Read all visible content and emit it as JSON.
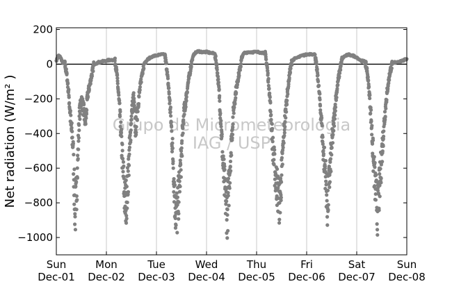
{
  "chart_data": {
    "type": "scatter",
    "title": "",
    "xlabel": "",
    "ylabel": "Net radiation (W/m² )",
    "ylim": [
      -1100,
      210
    ],
    "yticks": [
      200,
      0,
      -200,
      -400,
      -600,
      -800,
      -1000
    ],
    "ytick_labels": [
      "200",
      "0",
      "−200",
      "−400",
      "−600",
      "−800",
      "−1000"
    ],
    "xlim": [
      "2008-12-01",
      "2008-12-08"
    ],
    "xticks": [
      {
        "day": "Sun",
        "date": "Dec-01"
      },
      {
        "day": "Mon",
        "date": "Dec-02"
      },
      {
        "day": "Tue",
        "date": "Dec-03"
      },
      {
        "day": "Wed",
        "date": "Dec-04"
      },
      {
        "day": "Thu",
        "date": "Dec-05"
      },
      {
        "day": "Fri",
        "date": "Dec-06"
      },
      {
        "day": "Sat",
        "date": "Dec-07"
      },
      {
        "day": "Sun",
        "date": "Dec-08"
      }
    ],
    "grid": "vertical",
    "zero_line": true,
    "marker_color": "#808080",
    "watermark": [
      "Grupo de Micrometeorologia",
      "IAG / USP"
    ],
    "series": [
      {
        "points": [
          [
            "2008-12-01 00:00",
            20
          ],
          [
            "2008-12-01 01:00",
            50
          ],
          [
            "2008-12-01 02:00",
            40
          ],
          [
            "2008-12-01 03:00",
            10
          ],
          [
            "2008-12-01 04:00",
            5
          ],
          [
            "2008-12-01 05:00",
            -60
          ],
          [
            "2008-12-01 06:00",
            -180
          ],
          [
            "2008-12-01 07:00",
            -350
          ],
          [
            "2008-12-01 08:00",
            -470
          ],
          [
            "2008-12-01 09:00",
            -880
          ],
          [
            "2008-12-01 10:00",
            -650
          ],
          [
            "2008-12-01 11:00",
            -300
          ],
          [
            "2008-12-01 12:00",
            -200
          ],
          [
            "2008-12-01 13:00",
            -260
          ],
          [
            "2008-12-01 14:00",
            -340
          ],
          [
            "2008-12-01 15:00",
            -180
          ],
          [
            "2008-12-01 16:00",
            -120
          ],
          [
            "2008-12-01 17:00",
            -60
          ],
          [
            "2008-12-01 18:00",
            0
          ],
          [
            "2008-12-01 20:00",
            10
          ],
          [
            "2008-12-01 22:00",
            15
          ],
          [
            "2008-12-02 00:00",
            20
          ],
          [
            "2008-12-02 02:00",
            25
          ],
          [
            "2008-12-02 04:00",
            25
          ],
          [
            "2008-12-02 05:00",
            -50
          ],
          [
            "2008-12-02 06:00",
            -200
          ],
          [
            "2008-12-02 07:00",
            -400
          ],
          [
            "2008-12-02 08:00",
            -620
          ],
          [
            "2008-12-02 09:00",
            -820
          ],
          [
            "2008-12-02 10:00",
            -740
          ],
          [
            "2008-12-02 11:00",
            -520
          ],
          [
            "2008-12-02 12:00",
            -300
          ],
          [
            "2008-12-02 13:00",
            -180
          ],
          [
            "2008-12-02 14:00",
            -380
          ],
          [
            "2008-12-02 15:00",
            -250
          ],
          [
            "2008-12-02 16:00",
            -150
          ],
          [
            "2008-12-02 17:00",
            -60
          ],
          [
            "2008-12-02 18:00",
            0
          ],
          [
            "2008-12-02 20:00",
            30
          ],
          [
            "2008-12-02 22:00",
            45
          ],
          [
            "2008-12-03 00:00",
            50
          ],
          [
            "2008-12-03 02:00",
            55
          ],
          [
            "2008-12-03 04:00",
            55
          ],
          [
            "2008-12-03 05:00",
            -30
          ],
          [
            "2008-12-03 06:00",
            -160
          ],
          [
            "2008-12-03 07:00",
            -330
          ],
          [
            "2008-12-03 08:00",
            -560
          ],
          [
            "2008-12-03 09:00",
            -830
          ],
          [
            "2008-12-03 10:00",
            -860
          ],
          [
            "2008-12-03 11:00",
            -700
          ],
          [
            "2008-12-03 12:00",
            -520
          ],
          [
            "2008-12-03 13:00",
            -300
          ],
          [
            "2008-12-03 14:00",
            -220
          ],
          [
            "2008-12-03 15:00",
            -120
          ],
          [
            "2008-12-03 16:00",
            -50
          ],
          [
            "2008-12-03 17:00",
            20
          ],
          [
            "2008-12-03 18:00",
            60
          ],
          [
            "2008-12-03 20:00",
            75
          ],
          [
            "2008-12-03 22:00",
            70
          ],
          [
            "2008-12-04 00:00",
            70
          ],
          [
            "2008-12-04 02:00",
            65
          ],
          [
            "2008-12-04 04:00",
            60
          ],
          [
            "2008-12-04 05:00",
            -20
          ],
          [
            "2008-12-04 06:00",
            -150
          ],
          [
            "2008-12-04 07:00",
            -360
          ],
          [
            "2008-12-04 08:00",
            -600
          ],
          [
            "2008-12-04 09:00",
            -760
          ],
          [
            "2008-12-04 10:00",
            -870
          ],
          [
            "2008-12-04 11:00",
            -640
          ],
          [
            "2008-12-04 12:00",
            -440
          ],
          [
            "2008-12-04 13:00",
            -260
          ],
          [
            "2008-12-04 14:00",
            -160
          ],
          [
            "2008-12-04 15:00",
            -90
          ],
          [
            "2008-12-04 16:00",
            -30
          ],
          [
            "2008-12-04 17:00",
            40
          ],
          [
            "2008-12-04 18:00",
            65
          ],
          [
            "2008-12-04 20:00",
            70
          ],
          [
            "2008-12-04 22:00",
            70
          ],
          [
            "2008-12-05 00:00",
            70
          ],
          [
            "2008-12-05 02:00",
            68
          ],
          [
            "2008-12-05 04:00",
            65
          ],
          [
            "2008-12-05 05:00",
            -10
          ],
          [
            "2008-12-05 06:00",
            -140
          ],
          [
            "2008-12-05 07:00",
            -320
          ],
          [
            "2008-12-05 08:00",
            -520
          ],
          [
            "2008-12-05 09:00",
            -640
          ],
          [
            "2008-12-05 10:00",
            -720
          ],
          [
            "2008-12-05 11:00",
            -800
          ],
          [
            "2008-12-05 12:00",
            -640
          ],
          [
            "2008-12-05 13:00",
            -420
          ],
          [
            "2008-12-05 14:00",
            -260
          ],
          [
            "2008-12-05 15:00",
            -140
          ],
          [
            "2008-12-05 16:00",
            -40
          ],
          [
            "2008-12-05 17:00",
            20
          ],
          [
            "2008-12-05 18:00",
            30
          ],
          [
            "2008-12-05 20:00",
            40
          ],
          [
            "2008-12-05 22:00",
            50
          ],
          [
            "2008-12-06 00:00",
            55
          ],
          [
            "2008-12-06 02:00",
            60
          ],
          [
            "2008-12-06 04:00",
            55
          ],
          [
            "2008-12-06 05:00",
            -40
          ],
          [
            "2008-12-06 06:00",
            -160
          ],
          [
            "2008-12-06 07:00",
            -320
          ],
          [
            "2008-12-06 08:00",
            -500
          ],
          [
            "2008-12-06 09:00",
            -620
          ],
          [
            "2008-12-06 10:00",
            -830
          ],
          [
            "2008-12-06 11:00",
            -640
          ],
          [
            "2008-12-06 12:00",
            -480
          ],
          [
            "2008-12-06 13:00",
            -340
          ],
          [
            "2008-12-06 14:00",
            -200
          ],
          [
            "2008-12-06 15:00",
            -100
          ],
          [
            "2008-12-06 16:00",
            -30
          ],
          [
            "2008-12-06 17:00",
            30
          ],
          [
            "2008-12-06 18:00",
            45
          ],
          [
            "2008-12-06 20:00",
            55
          ],
          [
            "2008-12-06 22:00",
            50
          ],
          [
            "2008-12-07 00:00",
            40
          ],
          [
            "2008-12-07 02:00",
            20
          ],
          [
            "2008-12-07 04:00",
            15
          ],
          [
            "2008-12-07 05:00",
            -40
          ],
          [
            "2008-12-07 06:00",
            -160
          ],
          [
            "2008-12-07 07:00",
            -330
          ],
          [
            "2008-12-07 08:00",
            -560
          ],
          [
            "2008-12-07 09:00",
            -720
          ],
          [
            "2008-12-07 10:00",
            -850
          ],
          [
            "2008-12-07 11:00",
            -700
          ],
          [
            "2008-12-07 12:00",
            -520
          ],
          [
            "2008-12-07 13:00",
            -360
          ],
          [
            "2008-12-07 14:00",
            -220
          ],
          [
            "2008-12-07 15:00",
            -120
          ],
          [
            "2008-12-07 16:00",
            -40
          ],
          [
            "2008-12-07 17:00",
            0
          ],
          [
            "2008-12-07 18:00",
            10
          ],
          [
            "2008-12-07 20:00",
            15
          ],
          [
            "2008-12-07 22:00",
            20
          ],
          [
            "2008-12-08 00:00",
            30
          ]
        ]
      }
    ]
  }
}
